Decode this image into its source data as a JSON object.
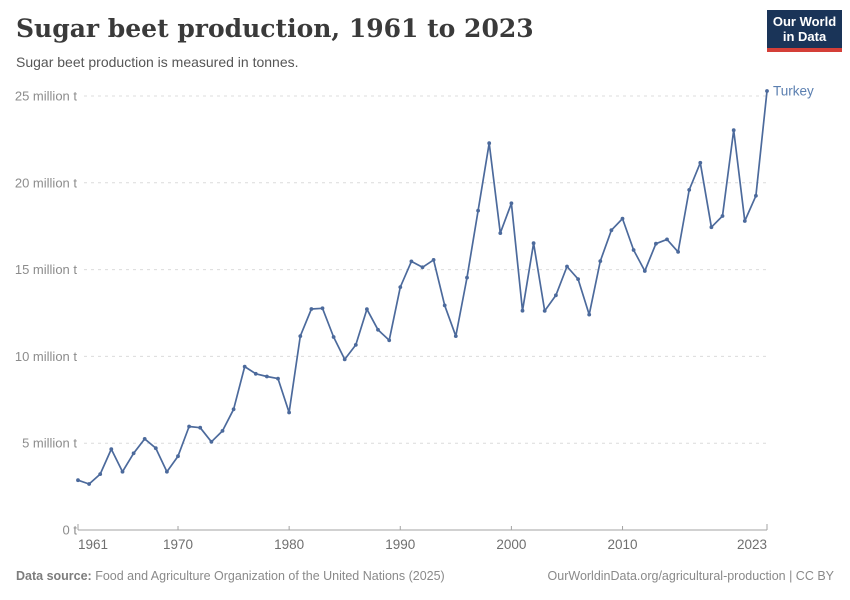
{
  "header": {
    "title": "Sugar beet production, 1961 to 2023",
    "subtitle": "Sugar beet production is measured in tonnes."
  },
  "logo": {
    "line1": "Our World",
    "line2": "in Data",
    "bg_color": "#1a3458",
    "accent_color": "#d43f38"
  },
  "chart_data": {
    "type": "line",
    "title": "Sugar beet production, 1961 to 2023",
    "unit": "tonnes",
    "xlabel": "",
    "ylabel": "",
    "grid": "horizontal-dashed",
    "legend_position": "end-of-line-label",
    "ylim_million_t": [
      0,
      25
    ],
    "y_ticks": [
      {
        "value": 0,
        "label": "0 t"
      },
      {
        "value": 5,
        "label": "5 million t"
      },
      {
        "value": 10,
        "label": "10 million t"
      },
      {
        "value": 15,
        "label": "15 million t"
      },
      {
        "value": 20,
        "label": "20 million t"
      },
      {
        "value": 25,
        "label": "25 million t"
      }
    ],
    "x_ticks": [
      1961,
      1970,
      1980,
      1990,
      2000,
      2010,
      2023
    ],
    "x": [
      1961,
      1962,
      1963,
      1964,
      1965,
      1966,
      1967,
      1968,
      1969,
      1970,
      1971,
      1972,
      1973,
      1974,
      1975,
      1976,
      1977,
      1978,
      1979,
      1980,
      1981,
      1982,
      1983,
      1984,
      1985,
      1986,
      1987,
      1988,
      1989,
      1990,
      1991,
      1992,
      1993,
      1994,
      1995,
      1996,
      1997,
      1998,
      1999,
      2000,
      2001,
      2002,
      2003,
      2004,
      2005,
      2006,
      2007,
      2008,
      2009,
      2010,
      2011,
      2012,
      2013,
      2014,
      2015,
      2016,
      2017,
      2018,
      2019,
      2020,
      2021,
      2022,
      2023
    ],
    "series": [
      {
        "name": "Turkey",
        "color": "#4C6A9C",
        "label_color": "#5b7fb0",
        "values_million_t": [
          2.87,
          2.65,
          3.22,
          4.66,
          3.36,
          4.42,
          5.25,
          4.71,
          3.36,
          4.25,
          5.96,
          5.89,
          5.08,
          5.71,
          6.95,
          9.41,
          9.0,
          8.84,
          8.72,
          6.77,
          11.17,
          12.73,
          12.77,
          11.12,
          9.83,
          10.66,
          12.72,
          11.53,
          10.93,
          13.99,
          15.47,
          15.13,
          15.56,
          12.94,
          11.17,
          14.54,
          18.4,
          22.28,
          17.1,
          18.82,
          12.63,
          16.52,
          12.62,
          13.52,
          15.18,
          14.45,
          12.41,
          15.49,
          17.27,
          17.94,
          16.13,
          14.92,
          16.49,
          16.74,
          16.02,
          19.59,
          21.15,
          17.44,
          18.09,
          23.03,
          17.8,
          19.25,
          25.29
        ]
      }
    ],
    "axis_color": "#a3a3a3",
    "gridline_color": "#dcdcdc",
    "y_tick_label_color": "#8c8c8c",
    "x_tick_label_color": "#6f6f6f"
  },
  "footer": {
    "datasource_label": "Data source:",
    "datasource_text": " Food and Agriculture Organization of the United Nations (2025)",
    "credit": "OurWorldinData.org/agricultural-production | CC BY"
  }
}
